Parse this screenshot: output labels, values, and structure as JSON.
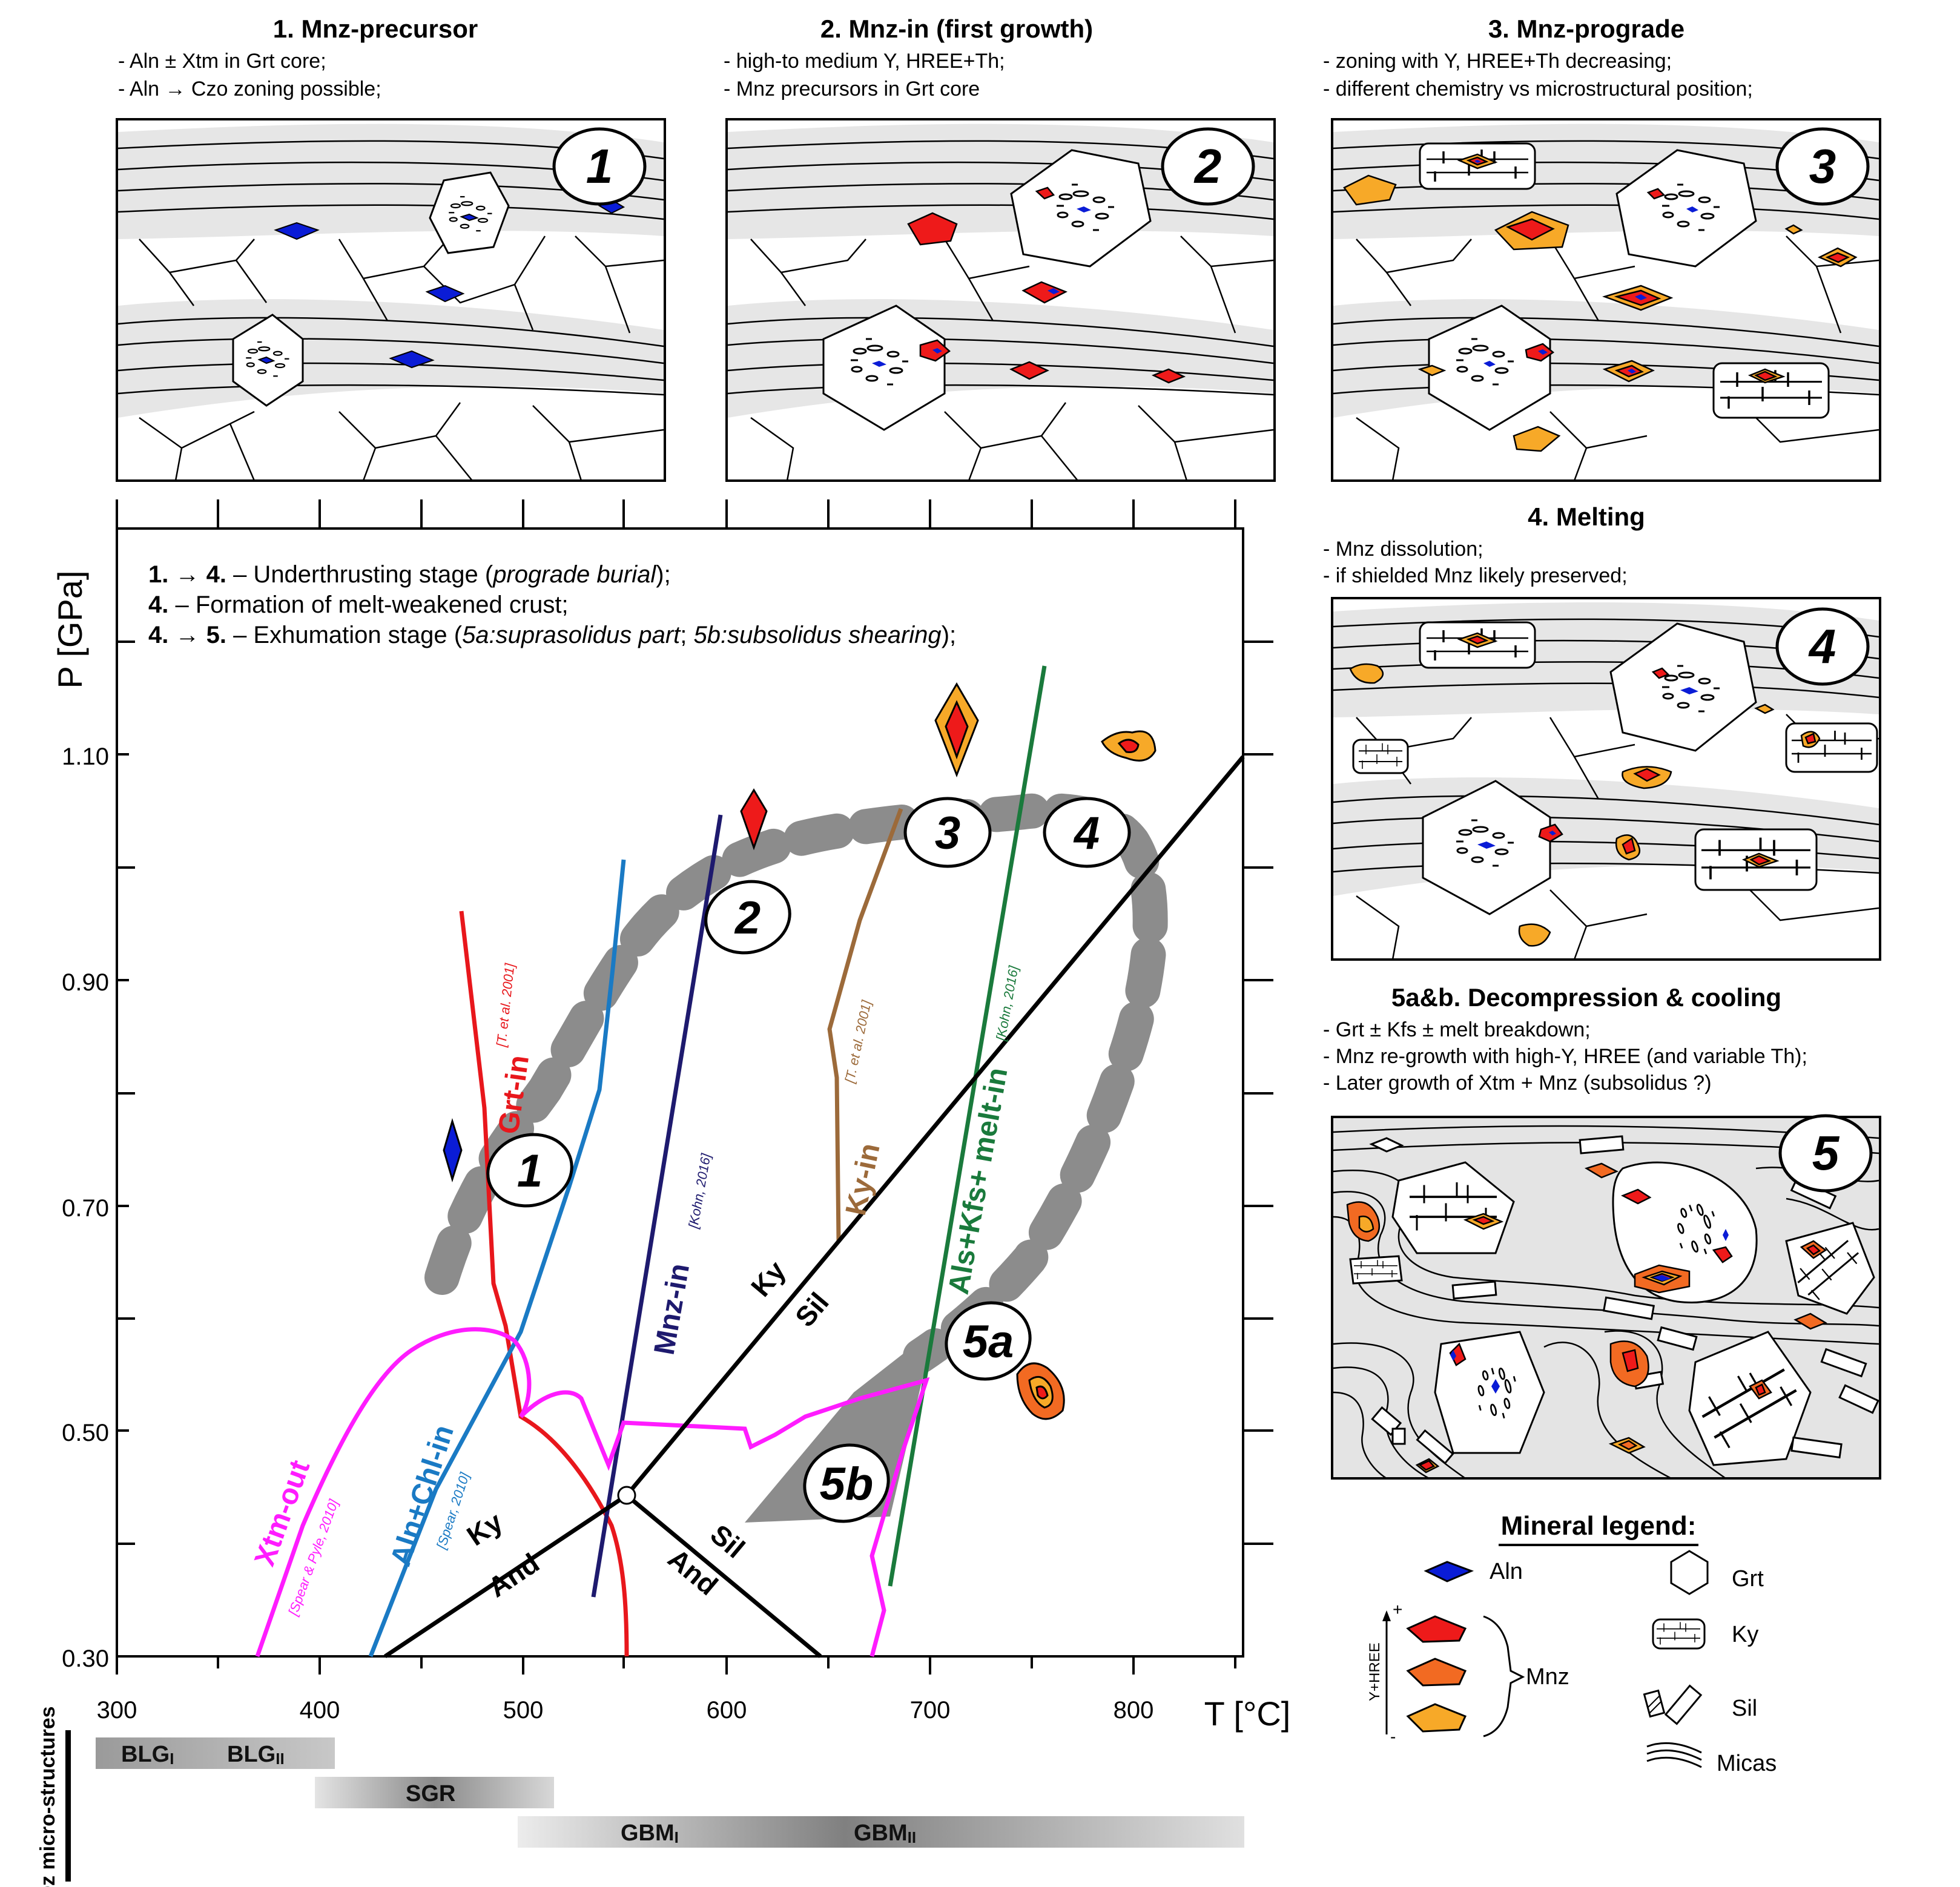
{
  "panels": [
    {
      "title": "1. Mnz-precursor",
      "lines": [
        "- Aln ± Xtm in Grt core;",
        "- Aln → Czo zoning possible;"
      ],
      "badge": "1"
    },
    {
      "title": "2. Mnz-in (first growth)",
      "lines": [
        "- high-to medium Y, HREE+Th;",
        "- Mnz precursors in Grt core"
      ],
      "badge": "2"
    },
    {
      "title": "3. Mnz-prograde",
      "lines": [
        "- zoning with Y, HREE+Th decreasing;",
        "- different chemistry vs microstructural position;"
      ],
      "badge": "3"
    },
    {
      "title": "4. Melting",
      "lines": [
        "- Mnz dissolution;",
        "- if shielded Mnz likely preserved;"
      ],
      "badge": "4"
    },
    {
      "title": "5a&b. Decompression & cooling",
      "lines": [
        "- Grt ± Kfs ± melt breakdown;",
        "- Mnz re-growth with high-Y, HREE (and variable Th);",
        "- Later growth of Xtm + Mnz (subsolidus ?)"
      ],
      "badge": "5"
    }
  ],
  "chart": {
    "ylabel": "P [GPa]",
    "xlabel": "T [°C]",
    "xticks": [
      "300",
      "400",
      "500",
      "600",
      "700",
      "800"
    ],
    "yticks": [
      "1.10",
      "0.90",
      "0.70",
      "0.50",
      "0.30"
    ],
    "notes": [
      {
        "a": "1.",
        "b": " 4.",
        "c": " – Underthrusting stage (",
        "d": "prograde burial",
        "e": ");"
      },
      {
        "a": "4.",
        "b": "",
        "c": " – Formation of melt-weakened crust;",
        "d": "",
        "e": ""
      },
      {
        "a": "4.",
        "b": " 5.",
        "c": " – Exhumation stage (",
        "d": "5a:suprasolidus part",
        "e": "; ",
        "f": "5b:subsolidus shearing",
        "g": ");"
      }
    ],
    "reactions": {
      "grt_in": "Grt-in",
      "grt_ref": "[T. et al. 2001]",
      "aln_chl": "Aln+Chl-in",
      "aln_ref": "[Spear, 2010]",
      "mnz_in": "Mnz-in",
      "mnz_ref": "[Kohn, 2016]",
      "ky_in": "Ky-in",
      "ky_ref": "[T. et al. 2001]",
      "als_melt": "Als+Kfs+ melt-in",
      "als_ref": "[Kohn, 2016]",
      "xtm_out": "Xtm-out",
      "xtm_ref": "[Spear & Pyle, 2010]",
      "ky": "Ky",
      "sil": "Sil",
      "and": "And"
    },
    "path_labels": [
      "1",
      "2",
      "3",
      "4",
      "5a",
      "5b"
    ],
    "colors": {
      "grt": "#e8171c",
      "aln": "#1a7ac4",
      "mnz": "#1e1a6e",
      "ky": "#9c6a3a",
      "als": "#1a7a3c",
      "xtm": "#ff1cff",
      "path": "#8c8c8c"
    }
  },
  "microstructures": {
    "label": "Qz micro-structures",
    "bars": [
      {
        "t1": "BLG",
        "s1": "I",
        "t2": "BLG",
        "s2": "II"
      },
      {
        "t1": "SGR"
      },
      {
        "t1": "GBM",
        "s1": "I",
        "t2": "GBM",
        "s2": "II"
      }
    ]
  },
  "legend": {
    "title": "Mineral legend:",
    "aln": "Aln",
    "grt": "Grt",
    "ky": "Ky",
    "mnz": "Mnz",
    "sil": "Sil",
    "micas": "Micas",
    "axis": "Y+HREE",
    "plus": "+",
    "minus": "-"
  },
  "mineral_colors": {
    "aln": "#0a1cd6",
    "mnz_high": "#ee1a1a",
    "mnz_mid": "#f26a22",
    "mnz_low": "#f7a928"
  }
}
